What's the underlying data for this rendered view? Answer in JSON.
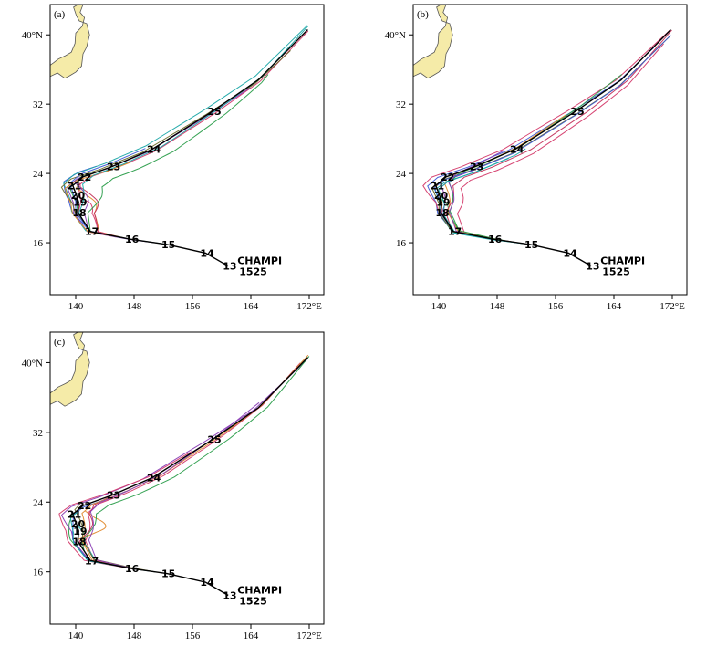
{
  "figure": {
    "panels": [
      {
        "id": "a",
        "label": "(a)"
      },
      {
        "id": "b",
        "label": "(b)"
      },
      {
        "id": "c",
        "label": "(c)"
      }
    ],
    "axes": {
      "lon_ticks": [
        140,
        148,
        156,
        164,
        172
      ],
      "lon_tick_labels": [
        "140",
        "148",
        "156",
        "164",
        "172°E"
      ],
      "lat_ticks": [
        16,
        24,
        32,
        40
      ],
      "lat_tick_labels": [
        "16",
        "24",
        "32",
        "40°N"
      ],
      "lon_range": [
        136.5,
        174
      ],
      "lat_range": [
        10,
        43.5
      ]
    },
    "storm": {
      "name": "CHAMPI",
      "number": "1525",
      "day_labels": [
        "13",
        "14",
        "15",
        "16",
        "17",
        "18",
        "19",
        "20",
        "21",
        "22",
        "23",
        "24",
        "25"
      ]
    },
    "colors": {
      "land": "#f5eba8",
      "observed_track": "#000000",
      "ensemble": [
        "#d43a6a",
        "#2a9d4a",
        "#3d5bd6",
        "#e08a2e",
        "#8a3fb5",
        "#1aa6a6",
        "#c2305a",
        "#6a6a2a"
      ]
    }
  },
  "chart_data": {
    "type": "map",
    "xlabel": "",
    "ylabel": "",
    "xlim": [
      136.5,
      174
    ],
    "ylim": [
      10,
      43.5
    ],
    "observed_track": {
      "name": "CHAMPI 1525",
      "points": [
        {
          "day": "13",
          "lon": 160.9,
          "lat": 13.3
        },
        {
          "day": "14",
          "lon": 157.8,
          "lat": 14.8
        },
        {
          "day": "15",
          "lon": 152.5,
          "lat": 15.8
        },
        {
          "day": "16",
          "lon": 147.5,
          "lat": 16.4
        },
        {
          "day": "17",
          "lon": 142.0,
          "lat": 17.3
        },
        {
          "day": "18",
          "lon": 140.3,
          "lat": 19.5
        },
        {
          "day": "19",
          "lon": 140.4,
          "lat": 20.7
        },
        {
          "day": "20",
          "lon": 140.1,
          "lat": 21.5
        },
        {
          "day": "21",
          "lon": 139.6,
          "lat": 22.6
        },
        {
          "day": "22",
          "lon": 141.0,
          "lat": 23.6
        },
        {
          "day": "23",
          "lon": 145.0,
          "lat": 24.8
        },
        {
          "day": "24",
          "lon": 150.5,
          "lat": 26.8
        },
        {
          "day": "25",
          "lon": 158.8,
          "lat": 31.2
        },
        {
          "day": "",
          "lon": 165.0,
          "lat": 34.8
        },
        {
          "day": "",
          "lon": 171.8,
          "lat": 40.6
        }
      ]
    }
  }
}
